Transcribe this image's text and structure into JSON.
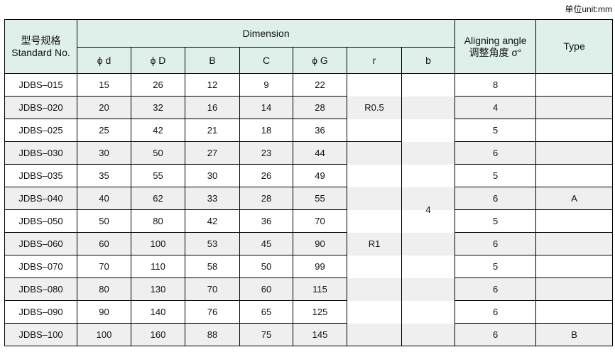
{
  "unit_label": "单位unit:mm",
  "headers": {
    "standard_cn": "型号规格",
    "standard_en": "Standard No.",
    "dimension": "Dimension",
    "cols": [
      "ϕ d",
      "ϕ D",
      "B",
      "C",
      "ϕ G",
      "r",
      "b"
    ],
    "angle_en": "Aligning angle",
    "angle_cn": "调整角度 σ°",
    "type": "Type"
  },
  "rows": [
    {
      "no": "JDBS–015",
      "d": "15",
      "D": "26",
      "B": "12",
      "C": "9",
      "G": "22",
      "angle": "8",
      "type": ""
    },
    {
      "no": "JDBS–020",
      "d": "20",
      "D": "32",
      "B": "16",
      "C": "14",
      "G": "28",
      "angle": "4",
      "type": ""
    },
    {
      "no": "JDBS–025",
      "d": "25",
      "D": "42",
      "B": "21",
      "C": "18",
      "G": "36",
      "angle": "5",
      "type": ""
    },
    {
      "no": "JDBS–030",
      "d": "30",
      "D": "50",
      "B": "27",
      "C": "23",
      "G": "44",
      "angle": "6",
      "type": ""
    },
    {
      "no": "JDBS–035",
      "d": "35",
      "D": "55",
      "B": "30",
      "C": "26",
      "G": "49",
      "angle": "5",
      "type": ""
    },
    {
      "no": "JDBS–040",
      "d": "40",
      "D": "62",
      "B": "33",
      "C": "28",
      "G": "55",
      "angle": "6",
      "type": "A"
    },
    {
      "no": "JDBS–050",
      "d": "50",
      "D": "80",
      "B": "42",
      "C": "36",
      "G": "70",
      "angle": "5",
      "type": ""
    },
    {
      "no": "JDBS–060",
      "d": "60",
      "D": "100",
      "B": "53",
      "C": "45",
      "G": "90",
      "angle": "6",
      "type": ""
    },
    {
      "no": "JDBS–070",
      "d": "70",
      "D": "110",
      "B": "58",
      "C": "50",
      "G": "99",
      "angle": "5",
      "type": ""
    },
    {
      "no": "JDBS–080",
      "d": "80",
      "D": "130",
      "B": "70",
      "C": "60",
      "G": "115",
      "angle": "6",
      "type": ""
    },
    {
      "no": "JDBS–090",
      "d": "90",
      "D": "140",
      "B": "76",
      "C": "65",
      "G": "125",
      "angle": "6",
      "type": ""
    },
    {
      "no": "JDBS–100",
      "d": "100",
      "D": "160",
      "B": "88",
      "C": "75",
      "G": "145",
      "angle": "6",
      "type": "B"
    }
  ],
  "merged": {
    "r_group1": "R0.5",
    "r_group2": "R1",
    "b_all": "4"
  }
}
